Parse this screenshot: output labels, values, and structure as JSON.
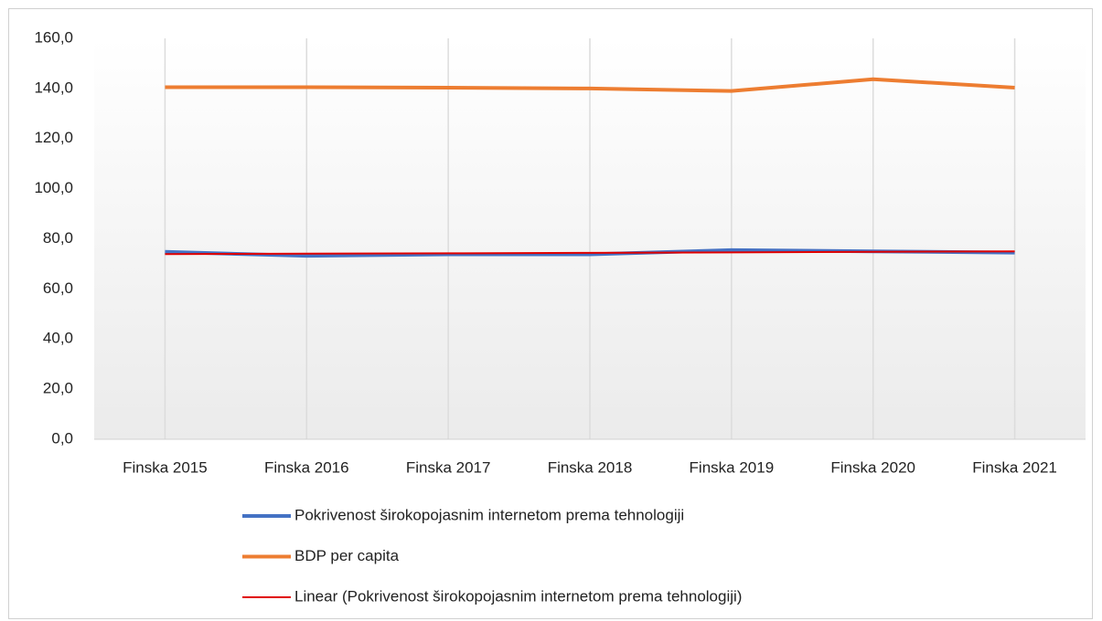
{
  "chart_data": {
    "type": "line",
    "categories": [
      "Finska 2015",
      "Finska 2016",
      "Finska 2017",
      "Finska 2018",
      "Finska 2019",
      "Finska 2020",
      "Finska 2021"
    ],
    "series": [
      {
        "name": "Pokrivenost širokopojasnim internetom prema tehnologiji",
        "color": "#4472c4",
        "width": 4,
        "values": [
          74.8,
          73.2,
          73.8,
          73.8,
          75.5,
          75.0,
          74.5
        ]
      },
      {
        "name": "BDP per capita",
        "color": "#ed7d31",
        "width": 4,
        "values": [
          140.5,
          140.5,
          140.3,
          140.0,
          139.0,
          143.7,
          140.3
        ]
      },
      {
        "name": "Linear (Pokrivenost širokopojasnim internetom prema tehnologiji)",
        "color": "#e00000",
        "width": 2,
        "values": [
          73.9,
          74.1,
          74.2,
          74.4,
          74.6,
          74.8,
          75.0
        ]
      }
    ],
    "ylim": [
      0,
      160
    ],
    "yticks": [
      {
        "value": 0,
        "label": "0,0"
      },
      {
        "value": 20,
        "label": "20,0"
      },
      {
        "value": 40,
        "label": "40,0"
      },
      {
        "value": 60,
        "label": "60,0"
      },
      {
        "value": 80,
        "label": "80,0"
      },
      {
        "value": 100,
        "label": "100,0"
      },
      {
        "value": 120,
        "label": "120,0"
      },
      {
        "value": 140,
        "label": "140,0"
      },
      {
        "value": 160,
        "label": "160,0"
      }
    ],
    "grid": "x",
    "legend": "bottom"
  }
}
